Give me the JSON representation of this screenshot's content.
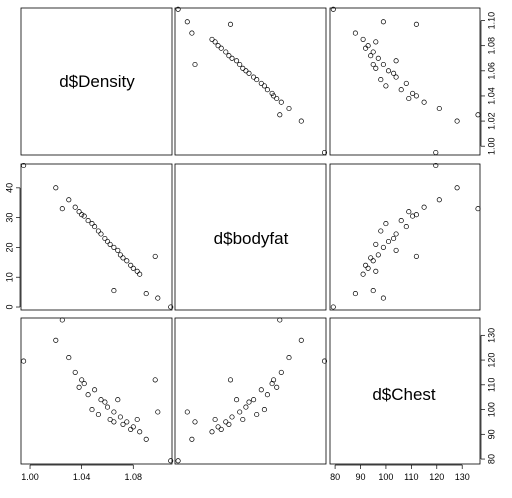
{
  "chart_data": {
    "type": "scatter",
    "variables": [
      "d$Density",
      "d$bodyfat",
      "d$Chest"
    ],
    "axes": {
      "d$Density": {
        "ticks": [
          "1.00",
          "1.02",
          "1.04",
          "1.06",
          "1.08",
          "1.10"
        ],
        "range": [
          0.993,
          1.11
        ]
      },
      "d$bodyfat": {
        "ticks": [
          "0",
          "10",
          "20",
          "30",
          "40"
        ],
        "range": [
          -1,
          48
        ]
      },
      "d$Chest": {
        "ticks": [
          "80",
          "90",
          "100",
          "110",
          "120",
          "130"
        ],
        "range": [
          78,
          137
        ]
      }
    },
    "bottom_axis_labels": [
      [
        "1.00",
        "1.04",
        "1.08"
      ],
      [],
      [
        "80",
        "90",
        "100",
        "110",
        "120",
        "130"
      ]
    ],
    "right_axis_labels": [
      [
        "1.00",
        "1.02",
        "1.04",
        "1.06",
        "1.08",
        "1.10"
      ],
      [],
      [
        "80",
        "90",
        "100",
        "110",
        "120",
        "130"
      ]
    ],
    "left_axis_labels": [
      [],
      [
        "0",
        "10",
        "20",
        "30",
        "40"
      ],
      []
    ],
    "observations": [
      {
        "density": 1.109,
        "bodyfat": 0.0,
        "chest": 79.3
      },
      {
        "density": 0.995,
        "bodyfat": 47.5,
        "chest": 119.6
      },
      {
        "density": 1.099,
        "bodyfat": 3.0,
        "chest": 99.0
      },
      {
        "density": 1.025,
        "bodyfat": 33.0,
        "chest": 136.2
      },
      {
        "density": 1.065,
        "bodyfat": 5.5,
        "chest": 95.0
      },
      {
        "density": 1.097,
        "bodyfat": 17.0,
        "chest": 112.0
      },
      {
        "density": 1.09,
        "bodyfat": 4.5,
        "chest": 88.0
      },
      {
        "density": 1.02,
        "bodyfat": 40.0,
        "chest": 128.0
      },
      {
        "density": 1.03,
        "bodyfat": 36.0,
        "chest": 121.0
      },
      {
        "density": 1.035,
        "bodyfat": 33.5,
        "chest": 115.0
      },
      {
        "density": 1.042,
        "bodyfat": 30.5,
        "chest": 110.5
      },
      {
        "density": 1.05,
        "bodyfat": 27.0,
        "chest": 108.0
      },
      {
        "density": 1.055,
        "bodyfat": 24.5,
        "chest": 104.0
      },
      {
        "density": 1.06,
        "bodyfat": 22.0,
        "chest": 101.0
      },
      {
        "density": 1.065,
        "bodyfat": 20.0,
        "chest": 99.0
      },
      {
        "density": 1.07,
        "bodyfat": 17.5,
        "chest": 97.0
      },
      {
        "density": 1.075,
        "bodyfat": 15.5,
        "chest": 95.0
      },
      {
        "density": 1.08,
        "bodyfat": 13.0,
        "chest": 93.0
      },
      {
        "density": 1.085,
        "bodyfat": 11.0,
        "chest": 91.0
      },
      {
        "density": 1.045,
        "bodyfat": 29.0,
        "chest": 106.0
      },
      {
        "density": 1.04,
        "bodyfat": 31.0,
        "chest": 112.0
      },
      {
        "density": 1.058,
        "bodyfat": 23.0,
        "chest": 103.0
      },
      {
        "density": 1.062,
        "bodyfat": 21.0,
        "chest": 96.0
      },
      {
        "density": 1.072,
        "bodyfat": 16.5,
        "chest": 94.0
      },
      {
        "density": 1.078,
        "bodyfat": 14.0,
        "chest": 92.0
      },
      {
        "density": 1.038,
        "bodyfat": 32.0,
        "chest": 109.0
      },
      {
        "density": 1.048,
        "bodyfat": 28.0,
        "chest": 100.0
      },
      {
        "density": 1.068,
        "bodyfat": 19.0,
        "chest": 104.0
      },
      {
        "density": 1.083,
        "bodyfat": 12.0,
        "chest": 96.0
      },
      {
        "density": 1.053,
        "bodyfat": 25.5,
        "chest": 98.0
      }
    ]
  }
}
